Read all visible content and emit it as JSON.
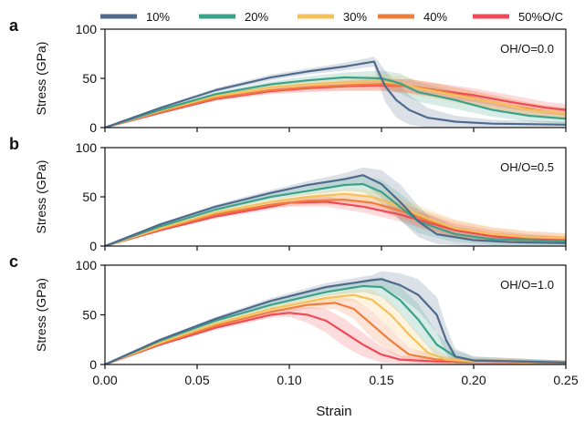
{
  "legend": {
    "items": [
      "10%",
      "20%",
      "30%",
      "40%",
      "50%"
    ],
    "suffix": "O/C"
  },
  "colors": [
    "#4e6a8c",
    "#3aa288",
    "#f5c15a",
    "#ef7d3c",
    "#ef4a55"
  ],
  "chart_data": [
    {
      "type": "line",
      "panel_letter": "a",
      "annotation": "OH/O=0.0",
      "ylabel": "Stress (GPa)",
      "xlabel": "",
      "xlim": [
        0,
        0.25
      ],
      "ylim": [
        0,
        100
      ],
      "yticks": [
        0,
        50,
        100
      ],
      "series": [
        {
          "name": "10%",
          "x": [
            0,
            0.03,
            0.06,
            0.09,
            0.11,
            0.13,
            0.146,
            0.148,
            0.152,
            0.158,
            0.165,
            0.175,
            0.19,
            0.21,
            0.25
          ],
          "y": [
            0,
            20,
            38,
            51,
            57,
            62,
            67,
            58,
            42,
            28,
            18,
            10,
            6,
            4,
            3
          ],
          "band": [
            0,
            1,
            2,
            3,
            3,
            4,
            5,
            10,
            16,
            18,
            15,
            10,
            6,
            4,
            3
          ]
        },
        {
          "name": "20%",
          "x": [
            0,
            0.03,
            0.06,
            0.09,
            0.11,
            0.13,
            0.15,
            0.16,
            0.17,
            0.19,
            0.21,
            0.23,
            0.25
          ],
          "y": [
            0,
            18,
            34,
            44,
            48,
            51,
            50,
            45,
            36,
            28,
            18,
            12,
            9
          ],
          "band": [
            0,
            1,
            2,
            3,
            4,
            5,
            8,
            10,
            10,
            9,
            7,
            6,
            5
          ]
        },
        {
          "name": "30%",
          "x": [
            0,
            0.03,
            0.06,
            0.09,
            0.11,
            0.13,
            0.15,
            0.16,
            0.17,
            0.19,
            0.21,
            0.23,
            0.25
          ],
          "y": [
            0,
            17,
            32,
            41,
            44,
            46,
            47,
            45,
            40,
            33,
            26,
            18,
            14
          ],
          "band": [
            0,
            1,
            2,
            3,
            4,
            5,
            7,
            8,
            8,
            8,
            8,
            7,
            6
          ]
        },
        {
          "name": "40%",
          "x": [
            0,
            0.03,
            0.06,
            0.09,
            0.11,
            0.13,
            0.15,
            0.165,
            0.18,
            0.2,
            0.22,
            0.24,
            0.25
          ],
          "y": [
            0,
            16,
            30,
            38,
            41,
            43,
            44,
            42,
            38,
            30,
            22,
            16,
            14
          ],
          "band": [
            0,
            1,
            2,
            3,
            4,
            5,
            6,
            7,
            7,
            7,
            7,
            6,
            6
          ]
        },
        {
          "name": "50%",
          "x": [
            0,
            0.03,
            0.06,
            0.09,
            0.11,
            0.13,
            0.15,
            0.165,
            0.18,
            0.2,
            0.22,
            0.24,
            0.25
          ],
          "y": [
            0,
            15,
            29,
            37,
            40,
            42,
            43,
            42,
            38,
            33,
            26,
            20,
            18
          ],
          "band": [
            0,
            1,
            2,
            3,
            4,
            5,
            6,
            7,
            7,
            7,
            7,
            6,
            6
          ]
        }
      ]
    },
    {
      "type": "line",
      "panel_letter": "b",
      "annotation": "OH/O=0.5",
      "ylabel": "Stress (GPa)",
      "xlabel": "",
      "xlim": [
        0,
        0.25
      ],
      "ylim": [
        0,
        100
      ],
      "yticks": [
        0,
        50,
        100
      ],
      "series": [
        {
          "name": "10%",
          "x": [
            0,
            0.03,
            0.06,
            0.09,
            0.11,
            0.13,
            0.14,
            0.15,
            0.16,
            0.17,
            0.18,
            0.2,
            0.22,
            0.25
          ],
          "y": [
            0,
            22,
            40,
            54,
            62,
            68,
            72,
            63,
            45,
            25,
            12,
            6,
            4,
            3
          ],
          "band": [
            0,
            1,
            2,
            3,
            4,
            6,
            8,
            14,
            18,
            16,
            10,
            6,
            4,
            3
          ]
        },
        {
          "name": "20%",
          "x": [
            0,
            0.03,
            0.06,
            0.09,
            0.11,
            0.13,
            0.14,
            0.15,
            0.16,
            0.17,
            0.19,
            0.21,
            0.25
          ],
          "y": [
            0,
            20,
            37,
            50,
            56,
            62,
            63,
            55,
            40,
            25,
            12,
            7,
            5
          ],
          "band": [
            0,
            1,
            2,
            3,
            4,
            6,
            8,
            12,
            14,
            12,
            8,
            6,
            4
          ]
        },
        {
          "name": "30%",
          "x": [
            0,
            0.03,
            0.06,
            0.09,
            0.11,
            0.13,
            0.145,
            0.16,
            0.175,
            0.19,
            0.21,
            0.23,
            0.25
          ],
          "y": [
            0,
            18,
            34,
            45,
            50,
            53,
            50,
            40,
            28,
            18,
            12,
            9,
            8
          ],
          "band": [
            0,
            1,
            2,
            3,
            4,
            5,
            7,
            9,
            10,
            9,
            7,
            6,
            5
          ]
        },
        {
          "name": "40%",
          "x": [
            0,
            0.03,
            0.06,
            0.09,
            0.11,
            0.13,
            0.145,
            0.16,
            0.175,
            0.19,
            0.21,
            0.23,
            0.25
          ],
          "y": [
            0,
            17,
            32,
            42,
            46,
            47,
            44,
            36,
            26,
            18,
            12,
            9,
            8
          ],
          "band": [
            0,
            1,
            2,
            3,
            4,
            5,
            6,
            8,
            9,
            8,
            7,
            6,
            5
          ]
        },
        {
          "name": "50%",
          "x": [
            0,
            0.03,
            0.06,
            0.09,
            0.1,
            0.12,
            0.14,
            0.16,
            0.175,
            0.19,
            0.21,
            0.23,
            0.25
          ],
          "y": [
            0,
            16,
            30,
            40,
            44,
            45,
            40,
            32,
            24,
            16,
            10,
            7,
            6
          ],
          "band": [
            0,
            1,
            2,
            3,
            4,
            5,
            6,
            7,
            8,
            7,
            6,
            5,
            4
          ]
        }
      ]
    },
    {
      "type": "line",
      "panel_letter": "c",
      "annotation": "OH/O=1.0",
      "ylabel": "Stress (GPa)",
      "xlabel": "Strain",
      "xlim": [
        0,
        0.25
      ],
      "ylim": [
        0,
        100
      ],
      "yticks": [
        0,
        50,
        100
      ],
      "xticks": [
        "0.00",
        "0.05",
        "0.10",
        "0.15",
        "0.20",
        "0.25"
      ],
      "series": [
        {
          "name": "10%",
          "x": [
            0,
            0.03,
            0.06,
            0.09,
            0.12,
            0.145,
            0.15,
            0.16,
            0.17,
            0.18,
            0.185,
            0.19,
            0.2,
            0.25
          ],
          "y": [
            0,
            25,
            46,
            64,
            78,
            85,
            86,
            80,
            70,
            50,
            25,
            8,
            4,
            2
          ],
          "band": [
            0,
            1,
            2,
            3,
            4,
            5,
            8,
            12,
            16,
            18,
            14,
            8,
            4,
            2
          ]
        },
        {
          "name": "20%",
          "x": [
            0,
            0.03,
            0.06,
            0.09,
            0.12,
            0.14,
            0.15,
            0.16,
            0.17,
            0.18,
            0.19,
            0.2,
            0.25
          ],
          "y": [
            0,
            24,
            44,
            60,
            73,
            79,
            78,
            65,
            45,
            20,
            8,
            4,
            2
          ],
          "band": [
            0,
            1,
            2,
            3,
            4,
            6,
            10,
            14,
            16,
            12,
            6,
            4,
            2
          ]
        },
        {
          "name": "30%",
          "x": [
            0,
            0.03,
            0.06,
            0.09,
            0.12,
            0.135,
            0.145,
            0.155,
            0.165,
            0.175,
            0.185,
            0.2,
            0.25
          ],
          "y": [
            0,
            22,
            41,
            56,
            67,
            70,
            65,
            50,
            30,
            12,
            5,
            3,
            2
          ],
          "band": [
            0,
            1,
            2,
            3,
            4,
            6,
            10,
            14,
            12,
            8,
            4,
            3,
            2
          ]
        },
        {
          "name": "40%",
          "x": [
            0,
            0.03,
            0.06,
            0.09,
            0.11,
            0.125,
            0.135,
            0.145,
            0.155,
            0.165,
            0.18,
            0.2,
            0.25
          ],
          "y": [
            0,
            21,
            39,
            53,
            60,
            62,
            56,
            40,
            24,
            10,
            5,
            3,
            2
          ],
          "band": [
            0,
            1,
            2,
            3,
            4,
            6,
            10,
            14,
            12,
            7,
            4,
            3,
            2
          ]
        },
        {
          "name": "50%",
          "x": [
            0,
            0.03,
            0.06,
            0.09,
            0.1,
            0.11,
            0.12,
            0.13,
            0.14,
            0.15,
            0.16,
            0.18,
            0.25
          ],
          "y": [
            0,
            20,
            37,
            50,
            52,
            50,
            44,
            32,
            20,
            10,
            5,
            3,
            2
          ],
          "band": [
            0,
            1,
            2,
            3,
            4,
            8,
            12,
            14,
            12,
            8,
            4,
            3,
            2
          ]
        }
      ]
    }
  ]
}
